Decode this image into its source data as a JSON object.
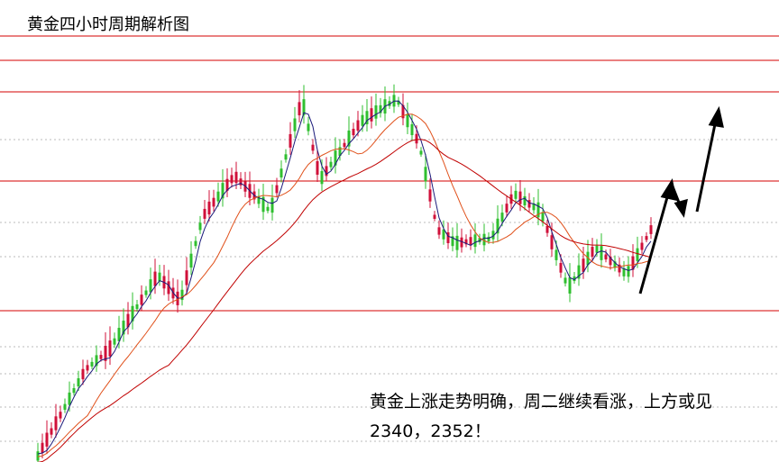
{
  "title": "黄金四小时周期解析图",
  "annotation": {
    "line1": "黄金上涨走势明确，周二继续看涨，上方或见",
    "line2": "2340，2352！"
  }
}
